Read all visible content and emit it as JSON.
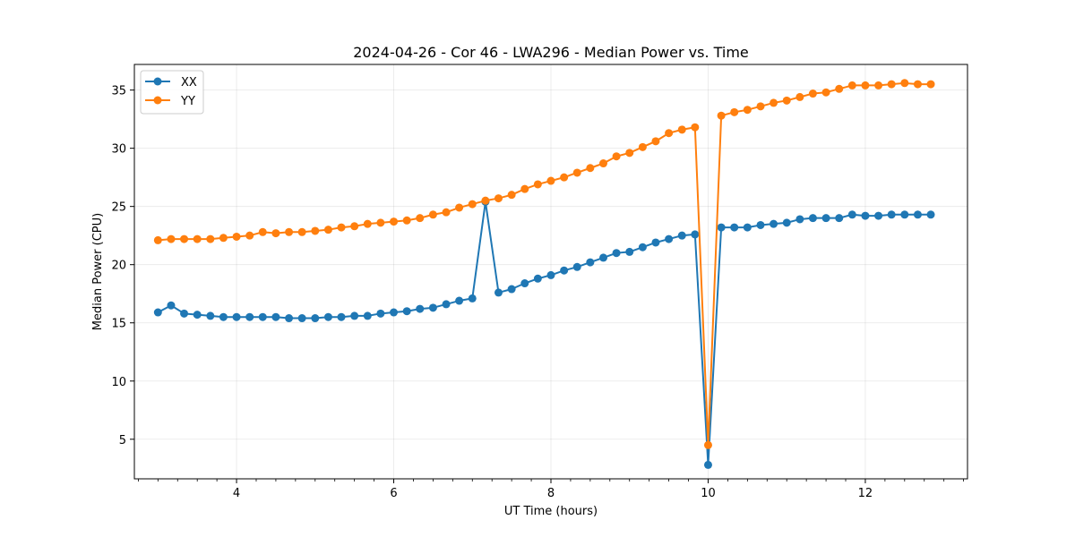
{
  "chart_data": {
    "type": "line",
    "title": "2024-04-26 - Cor 46 - LWA296 - Median Power vs. Time",
    "xlabel": "UT Time (hours)",
    "ylabel": "Median Power (CPU)",
    "xlim": [
      2.7,
      13.3
    ],
    "ylim": [
      1.6,
      37.2
    ],
    "xticks": [
      4,
      6,
      8,
      10,
      12
    ],
    "yticks": [
      5,
      10,
      15,
      20,
      25,
      30,
      35
    ],
    "grid": true,
    "legend_position": "top-left",
    "x": [
      3.0,
      3.167,
      3.333,
      3.5,
      3.667,
      3.833,
      4.0,
      4.167,
      4.333,
      4.5,
      4.667,
      4.833,
      5.0,
      5.167,
      5.333,
      5.5,
      5.667,
      5.833,
      6.0,
      6.167,
      6.333,
      6.5,
      6.667,
      6.833,
      7.0,
      7.167,
      7.333,
      7.5,
      7.667,
      7.833,
      8.0,
      8.167,
      8.333,
      8.5,
      8.667,
      8.833,
      9.0,
      9.167,
      9.333,
      9.5,
      9.667,
      9.833,
      10.0,
      10.167,
      10.333,
      10.5,
      10.667,
      10.833,
      11.0,
      11.167,
      11.333,
      11.5,
      11.667,
      11.833,
      12.0,
      12.167,
      12.333,
      12.5,
      12.667,
      12.833
    ],
    "series": [
      {
        "name": "XX",
        "color": "#1f77b4",
        "values": [
          15.9,
          16.5,
          15.8,
          15.7,
          15.6,
          15.5,
          15.5,
          15.5,
          15.5,
          15.5,
          15.4,
          15.4,
          15.4,
          15.5,
          15.5,
          15.6,
          15.6,
          15.8,
          15.9,
          16.0,
          16.2,
          16.3,
          16.6,
          16.9,
          17.1,
          25.4,
          17.6,
          17.9,
          18.4,
          18.8,
          19.1,
          19.5,
          19.8,
          20.2,
          20.6,
          21.0,
          21.1,
          21.5,
          21.9,
          22.2,
          22.5,
          22.6,
          2.8,
          23.2,
          23.2,
          23.2,
          23.4,
          23.5,
          23.6,
          23.9,
          24.0,
          24.0,
          24.0,
          24.3,
          24.2,
          24.2,
          24.3,
          24.3,
          24.3,
          24.3
        ]
      },
      {
        "name": "YY",
        "color": "#ff7f0e",
        "values": [
          22.1,
          22.2,
          22.2,
          22.2,
          22.2,
          22.3,
          22.4,
          22.5,
          22.8,
          22.7,
          22.8,
          22.8,
          22.9,
          23.0,
          23.2,
          23.3,
          23.5,
          23.6,
          23.7,
          23.8,
          24.0,
          24.3,
          24.5,
          24.9,
          25.2,
          25.5,
          25.7,
          26.0,
          26.5,
          26.9,
          27.2,
          27.5,
          27.9,
          28.3,
          28.7,
          29.3,
          29.6,
          30.1,
          30.6,
          31.3,
          31.6,
          31.8,
          4.5,
          32.8,
          33.1,
          33.3,
          33.6,
          33.9,
          34.1,
          34.4,
          34.7,
          34.8,
          35.1,
          35.4,
          35.4,
          35.4,
          35.5,
          35.6,
          35.5,
          35.5
        ]
      }
    ]
  }
}
